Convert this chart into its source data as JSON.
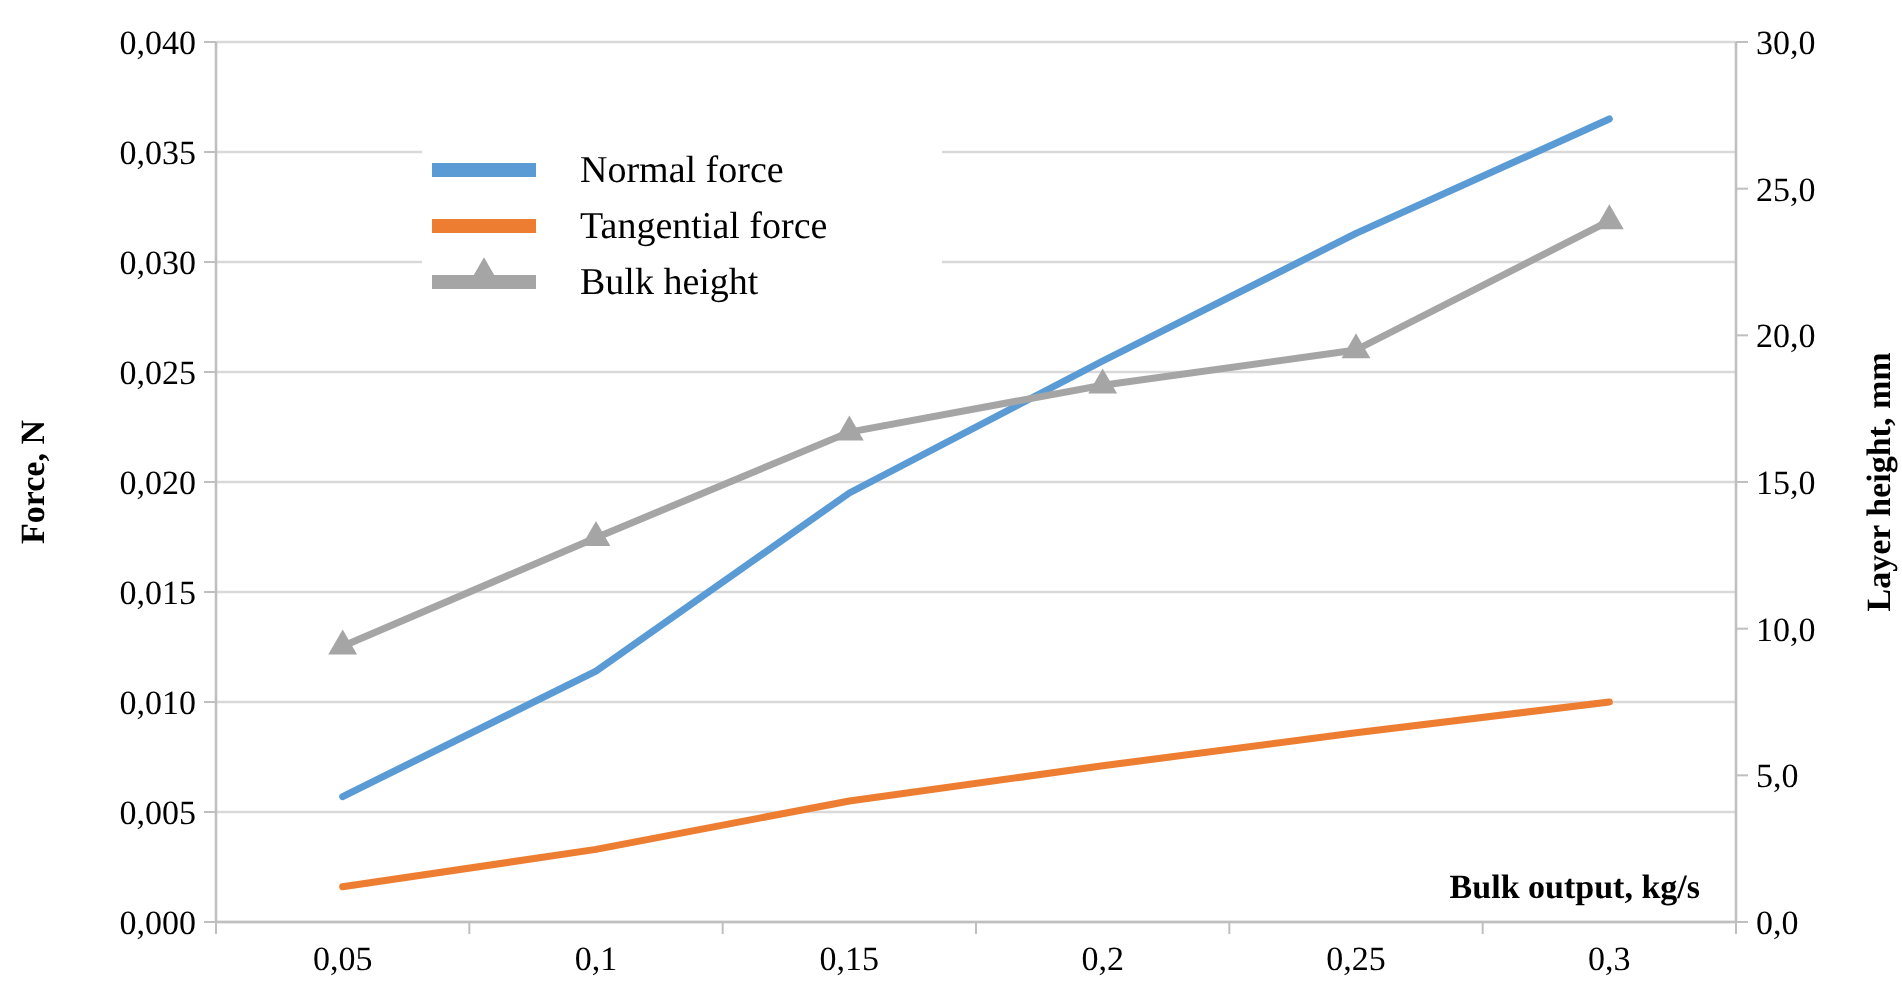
{
  "chart_data": {
    "type": "line",
    "xlabel": "Bulk output, kg/s",
    "ylabel": "Force, N",
    "y2label": "Layer height, mm",
    "categories": [
      "0,05",
      "0,1",
      "0,15",
      "0,2",
      "0,25",
      "0,3"
    ],
    "series": [
      {
        "name": "Normal force",
        "color": "#5b9bd5",
        "values": [
          0.0057,
          0.0114,
          0.0195,
          0.0255,
          0.0313,
          0.0365
        ],
        "marker": "none"
      },
      {
        "name": "Tangential force",
        "color": "#ed7d31",
        "values": [
          0.0016,
          0.0033,
          0.0055,
          0.0071,
          0.0086,
          0.01
        ],
        "marker": "none"
      },
      {
        "name": "Bulk height",
        "color": "#a5a5a5",
        "values": [
          9.4,
          13.1,
          16.7,
          18.3,
          19.5,
          23.9
        ],
        "axis": "y2",
        "marker": "triangle"
      }
    ],
    "ylim": [
      0,
      0.04
    ],
    "yticks": [
      {
        "value": 0,
        "label": "0,000"
      },
      {
        "value": 0.005,
        "label": "0,005"
      },
      {
        "value": 0.01,
        "label": "0,010"
      },
      {
        "value": 0.015,
        "label": "0,015"
      },
      {
        "value": 0.02,
        "label": "0,020"
      },
      {
        "value": 0.025,
        "label": "0,025"
      },
      {
        "value": 0.03,
        "label": "0,030"
      },
      {
        "value": 0.035,
        "label": "0,035"
      },
      {
        "value": 0.04,
        "label": "0,040"
      }
    ],
    "y2lim": [
      0,
      30
    ],
    "y2ticks": [
      {
        "value": 0,
        "label": "0,0"
      },
      {
        "value": 5,
        "label": "5,0"
      },
      {
        "value": 10,
        "label": "10,0"
      },
      {
        "value": 15,
        "label": "15,0"
      },
      {
        "value": 20,
        "label": "20,0"
      },
      {
        "value": 25,
        "label": "25,0"
      },
      {
        "value": 30,
        "label": "30,0"
      }
    ],
    "grid": "y",
    "legend": "top left",
    "line_style": "solid"
  }
}
